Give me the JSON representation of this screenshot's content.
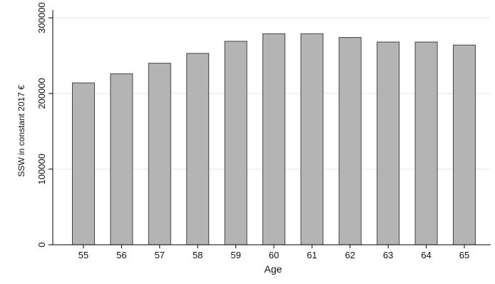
{
  "chart_data": {
    "type": "bar",
    "title": "",
    "xlabel": "Age",
    "ylabel": "SSW in constant 2017 €",
    "categories": [
      "55",
      "56",
      "57",
      "58",
      "59",
      "60",
      "61",
      "62",
      "63",
      "64",
      "65"
    ],
    "values": [
      214000,
      226000,
      240000,
      253000,
      269000,
      279000,
      279000,
      274000,
      268000,
      268000,
      264000
    ],
    "ylim": [
      0,
      300000
    ],
    "yticks": [
      0,
      100000,
      200000,
      300000
    ],
    "ytick_labels": [
      "0",
      "100000",
      "200000",
      "300000"
    ],
    "grid": "horizontal",
    "colors": {
      "bar_fill": "#b4b4b4",
      "bar_edge": "#444444",
      "grid": "#e6e6e6"
    }
  }
}
